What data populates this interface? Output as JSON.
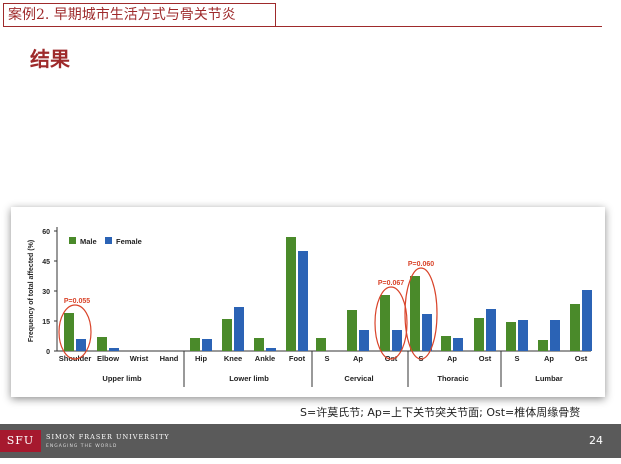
{
  "slide": {
    "case_title": "案例2. 早期城市生活方式与骨关节炎",
    "heading": "结果",
    "caption": "S=许莫氏节;   Ap=上下关节突关节面;  Ost=椎体周缘骨赘",
    "page_number": "24"
  },
  "footer": {
    "logo_text": "SFU",
    "university_name": "SIMON FRASER UNIVERSITY",
    "tagline": "ENGAGING THE WORLD"
  },
  "colors": {
    "accent": "#9e2a2b",
    "male": "#4a8a2a",
    "female": "#2b63b5",
    "annotation": "#d9442a",
    "footer": "#5a5a5a",
    "logo": "#a6192e"
  },
  "chart_data": {
    "type": "bar",
    "ylabel": "Frequency of total affected (%)",
    "ylim": [
      0,
      60
    ],
    "yticks": [
      0,
      15,
      30,
      45,
      60
    ],
    "grid": false,
    "legend_position": "top-left",
    "series_names": [
      "Male",
      "Female"
    ],
    "categories": [
      "Shoulder",
      "Elbow",
      "Wrist",
      "Hand",
      "Hip",
      "Knee",
      "Ankle",
      "Foot",
      "S",
      "Ap",
      "Ost",
      "S",
      "Ap",
      "Ost",
      "S",
      "Ap",
      "Ost"
    ],
    "series": [
      {
        "name": "Male",
        "values": [
          19,
          7,
          0,
          0,
          6.5,
          16,
          6.5,
          57,
          6.5,
          20.5,
          28,
          37.5,
          7.5,
          16.5,
          14.5,
          5.5,
          23.5
        ]
      },
      {
        "name": "Female",
        "values": [
          6,
          1.5,
          0,
          0,
          6,
          22,
          1.5,
          50,
          0,
          10.5,
          10.5,
          18.5,
          6.5,
          21,
          15.5,
          15.5,
          30.5
        ]
      }
    ],
    "groups": [
      {
        "label": "Upper limb",
        "start": 0,
        "end": 3
      },
      {
        "label": "Lower limb",
        "start": 4,
        "end": 7
      },
      {
        "label": "Cervical",
        "start": 8,
        "end": 10
      },
      {
        "label": "Thoracic",
        "start": 11,
        "end": 13
      },
      {
        "label": "Lumbar",
        "start": 14,
        "end": 16
      }
    ],
    "annotations": [
      {
        "label": "P=0.055",
        "category_index": 0
      },
      {
        "label": "P=0.067",
        "category_index": 10
      },
      {
        "label": "P=0.060",
        "category_index": 11
      }
    ]
  }
}
